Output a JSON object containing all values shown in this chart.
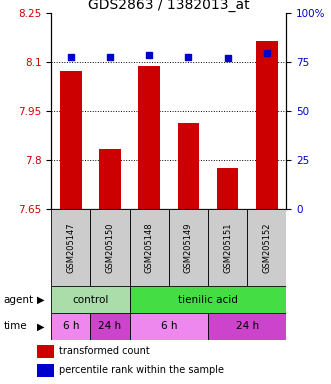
{
  "title": "GDS2863 / 1382013_at",
  "samples": [
    "GSM205147",
    "GSM205150",
    "GSM205148",
    "GSM205149",
    "GSM205151",
    "GSM205152"
  ],
  "bar_values": [
    8.075,
    7.835,
    8.09,
    7.915,
    7.775,
    8.165
  ],
  "dot_values": [
    78,
    78,
    79,
    78,
    77,
    80
  ],
  "ylim_left": [
    7.65,
    8.25
  ],
  "ylim_right": [
    0,
    100
  ],
  "yticks_left": [
    7.65,
    7.8,
    7.95,
    8.1,
    8.25
  ],
  "yticks_right": [
    0,
    25,
    50,
    75,
    100
  ],
  "ytick_labels_right": [
    "0",
    "25",
    "50",
    "75",
    "100%"
  ],
  "bar_color": "#cc0000",
  "dot_color": "#0000cc",
  "agent_groups": [
    {
      "label": "control",
      "span": [
        0,
        2
      ],
      "color": "#aaddaa"
    },
    {
      "label": "tienilic acid",
      "span": [
        2,
        6
      ],
      "color": "#44dd44"
    }
  ],
  "time_groups": [
    {
      "label": "6 h",
      "span": [
        0,
        1
      ],
      "color": "#ee88ee"
    },
    {
      "label": "24 h",
      "span": [
        1,
        2
      ],
      "color": "#cc44cc"
    },
    {
      "label": "6 h",
      "span": [
        2,
        4
      ],
      "color": "#ee88ee"
    },
    {
      "label": "24 h",
      "span": [
        4,
        6
      ],
      "color": "#cc44cc"
    }
  ],
  "legend_bar_label": "transformed count",
  "legend_dot_label": "percentile rank within the sample",
  "agent_label": "agent",
  "time_label": "time",
  "title_fontsize": 10,
  "tick_fontsize": 7.5,
  "sample_fontsize": 6,
  "row_fontsize": 7.5,
  "legend_fontsize": 7
}
